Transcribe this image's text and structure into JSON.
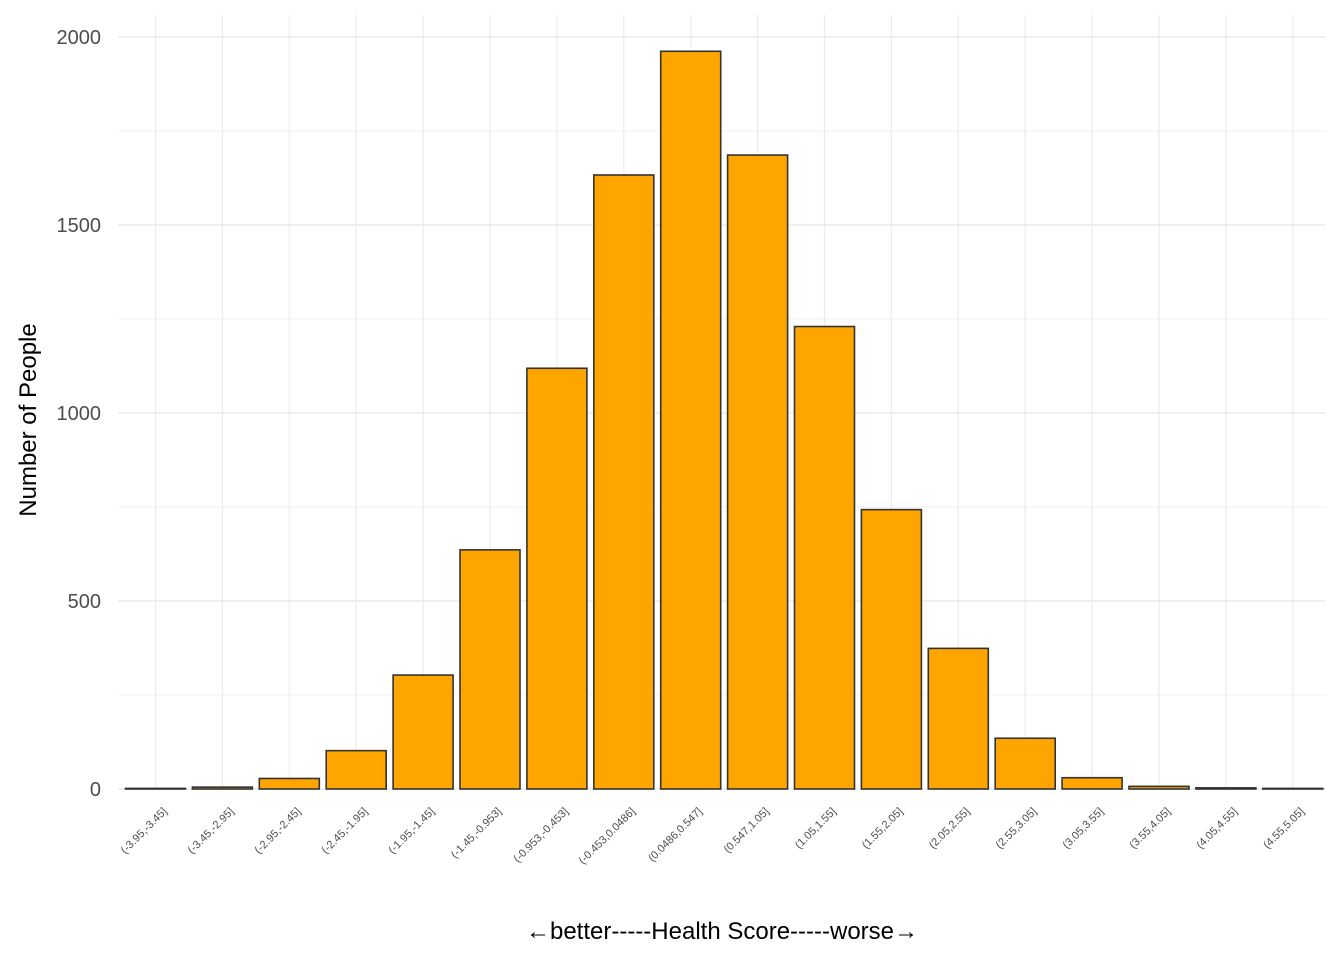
{
  "chart_data": {
    "type": "bar",
    "title": "",
    "xlabel": "←better-----Health Score-----worse→",
    "ylabel": "Number of People",
    "ylim": [
      0,
      2000
    ],
    "yticks": [
      0,
      500,
      1000,
      1500,
      2000
    ],
    "grid": true,
    "legend": "none",
    "colors": {
      "bar_fill": "#FFA500",
      "bar_stroke": "#333333",
      "grid": "#EBEBEB"
    },
    "categories": [
      "(-3.95,-3.45]",
      "(-3.45,-2.95]",
      "(-2.95,-2.45]",
      "(-2.45,-1.95]",
      "(-1.95,-1.45]",
      "(-1.45,-0.953]",
      "(-0.953,-0.453]",
      "(-0.453,0.0486]",
      "(0.0486,0.547]",
      "(0.547,1.05]",
      "(1.05,1.55]",
      "(1.55,2.05]",
      "(2.05,2.55]",
      "(2.55,3.05]",
      "(3.05,3.55]",
      "(3.55,4.05]",
      "(4.05,4.55]",
      "(4.55,5.05]"
    ],
    "values": [
      1,
      5,
      28,
      102,
      303,
      636,
      1119,
      1633,
      1962,
      1686,
      1230,
      743,
      374,
      135,
      30,
      7,
      3,
      1
    ]
  }
}
